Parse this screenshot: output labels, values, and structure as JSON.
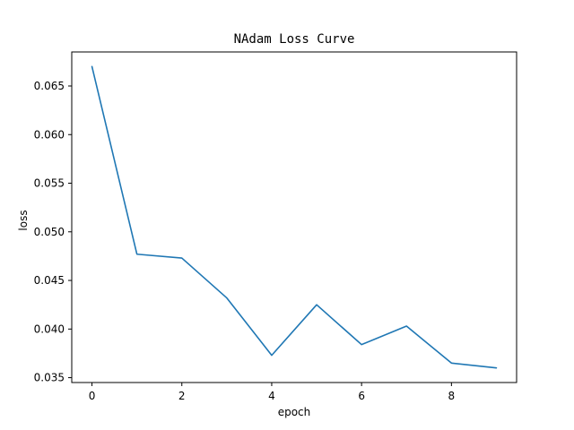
{
  "chart_data": {
    "type": "line",
    "title": "NAdam Loss Curve",
    "xlabel": "epoch",
    "ylabel": "loss",
    "x": [
      0,
      1,
      2,
      3,
      4,
      5,
      6,
      7,
      8,
      9
    ],
    "series": [
      {
        "values": [
          0.067,
          0.0477,
          0.0473,
          0.0432,
          0.0373,
          0.0425,
          0.0384,
          0.0403,
          0.0365,
          0.036
        ],
        "color": "#1f77b4"
      }
    ],
    "xlim": [
      -0.45,
      9.45
    ],
    "ylim": [
      0.0345,
      0.0685
    ],
    "xticks": [
      0,
      2,
      4,
      6,
      8
    ],
    "xtick_labels": [
      "0",
      "2",
      "4",
      "6",
      "8"
    ],
    "yticks": [
      0.035,
      0.04,
      0.045,
      0.05,
      0.055,
      0.06,
      0.065
    ],
    "ytick_labels": [
      "0.035",
      "0.040",
      "0.045",
      "0.050",
      "0.055",
      "0.060",
      "0.065"
    ],
    "grid": false,
    "legend": "none"
  }
}
